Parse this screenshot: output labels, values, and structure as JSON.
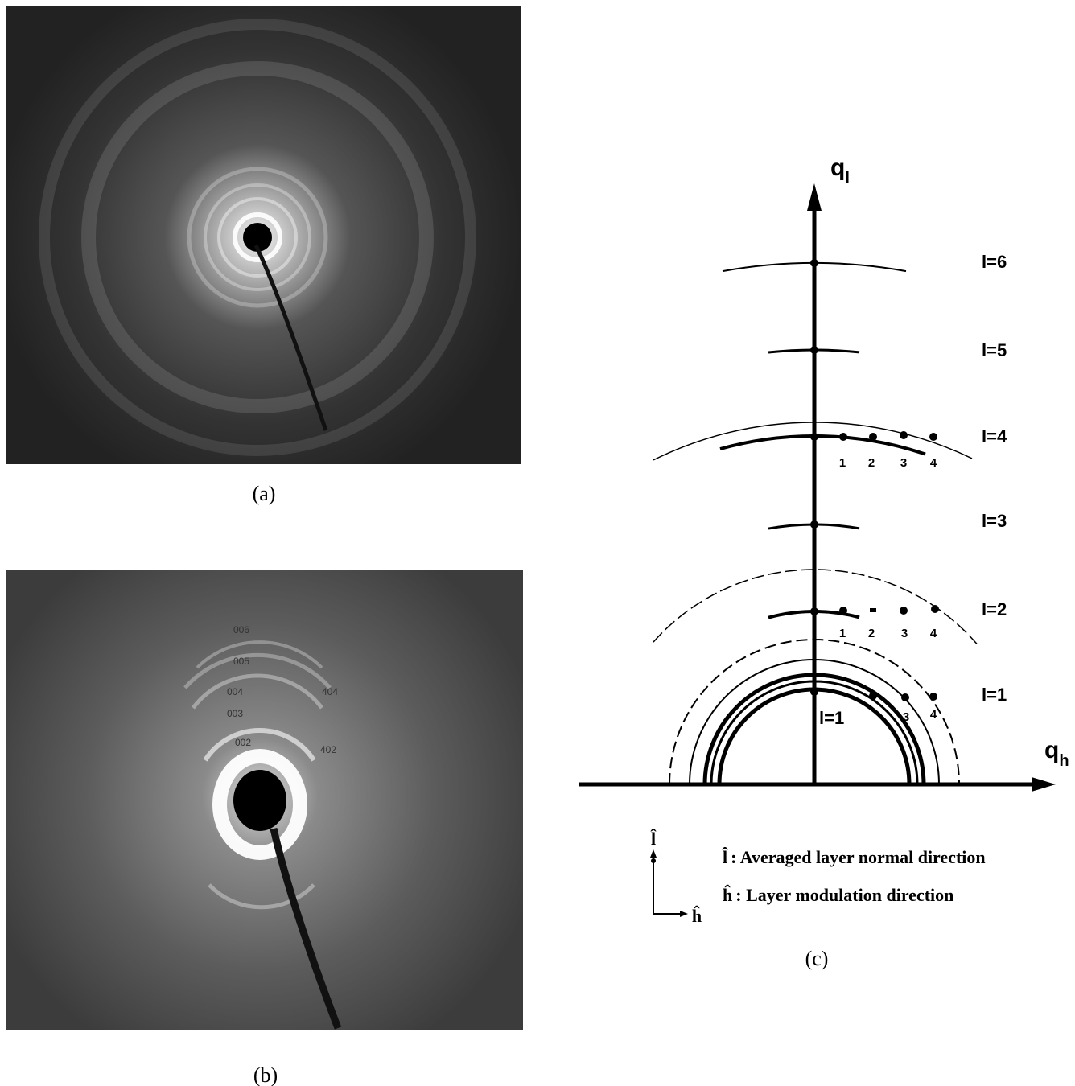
{
  "panel_a": {
    "label": "(a)"
  },
  "panel_b": {
    "label": "(b)",
    "annotations": [
      "006",
      "005",
      "004",
      "003",
      "002",
      "404",
      "402"
    ]
  },
  "panel_c": {
    "label": "(c)",
    "vertical_axis": {
      "symbol": "q",
      "subscript": "l"
    },
    "horizontal_axis": {
      "symbol": "q",
      "subscript": "h"
    },
    "layer_labels": [
      "l=6",
      "l=5",
      "l=4",
      "l=3",
      "l=2",
      "l=1"
    ],
    "inner_label": "l=1",
    "row_l4_indices": [
      "1",
      "2",
      "3",
      "4"
    ],
    "row_l2_indices": [
      "1",
      "2",
      "3",
      "4"
    ],
    "row_l1_indices": [
      "3",
      "4"
    ],
    "legend": [
      {
        "symbol": "l̂",
        "description": ": Averaged layer normal direction"
      },
      {
        "symbol": "ĥ",
        "description": ": Layer modulation direction"
      }
    ],
    "legend_arrow_labels": {
      "vertical": "l̂",
      "horizontal": "ĥ"
    }
  }
}
